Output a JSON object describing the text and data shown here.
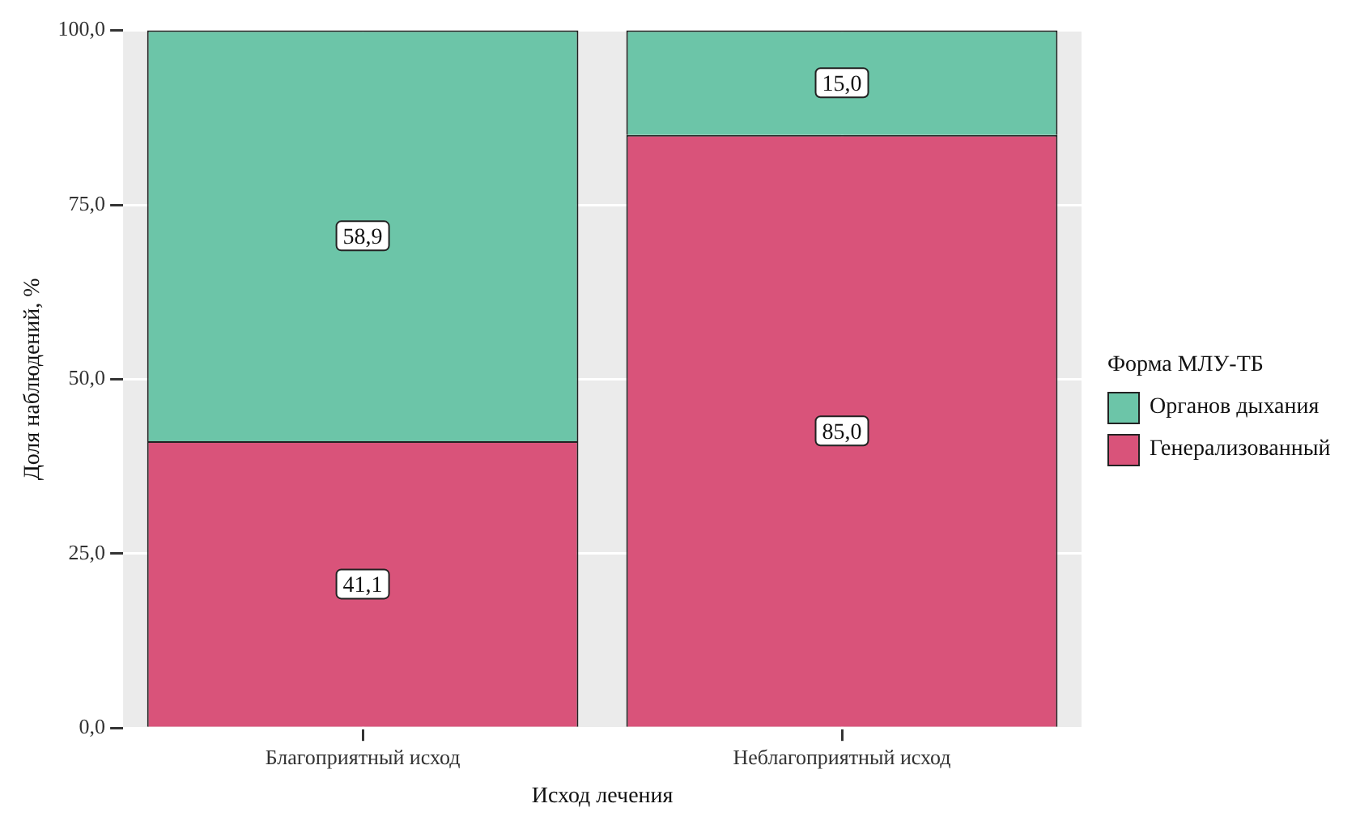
{
  "chart_data": {
    "type": "bar",
    "stacked": true,
    "xlabel": "Исход лечения",
    "ylabel": "Доля наблюдений, %",
    "legend_title": "Форма МЛУ-ТБ",
    "categories": [
      "Благоприятный исход",
      "Неблагоприятный исход"
    ],
    "series": [
      {
        "name": "Генерализованный",
        "color": "#d9537a",
        "values": [
          41.1,
          85.0
        ],
        "value_labels": [
          "41,1",
          "85,0"
        ]
      },
      {
        "name": "Органов дыхания",
        "color": "#6cc5a8",
        "values": [
          58.9,
          15.0
        ],
        "value_labels": [
          "58,9",
          "15,0"
        ]
      }
    ],
    "ylim": [
      0,
      100
    ],
    "yticks": [
      {
        "value": 0,
        "label": "0,0"
      },
      {
        "value": 25,
        "label": "25,0"
      },
      {
        "value": 50,
        "label": "50,0"
      },
      {
        "value": 75,
        "label": "75,0"
      },
      {
        "value": 100,
        "label": "100,0"
      }
    ],
    "grid": true,
    "legend": "right"
  }
}
